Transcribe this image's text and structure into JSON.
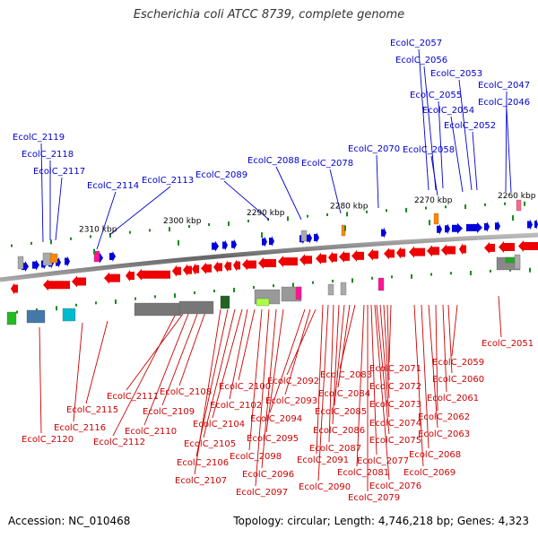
{
  "title": "Escherichia coli ATCC 8739, complete genome",
  "footer": {
    "accession": "Accession: NC_010468",
    "summary": "Topology: circular; Length: 4,746,218 bp; Genes: 4,323"
  },
  "colors": {
    "forward": "#0000dd",
    "reverse": "#ee0000",
    "backbone": "#888888"
  },
  "ticks": [
    "2310 kbp",
    "2300 kbp",
    "2290 kbp",
    "2280 kbp",
    "2270 kbp",
    "2260 kbp"
  ],
  "upper_labels": [
    "EcolC_2119",
    "EcolC_2118",
    "EcolC_2117",
    "EcolC_2114",
    "EcolC_2113",
    "EcolC_2089",
    "EcolC_2088",
    "EcolC_2078",
    "EcolC_2070",
    "EcolC_2058",
    "EcolC_2057",
    "EcolC_2056",
    "EcolC_2055",
    "EcolC_2054",
    "EcolC_2053",
    "EcolC_2052",
    "EcolC_2047",
    "EcolC_2046"
  ],
  "lower_labels": [
    "EcolC_2051",
    "EcolC_2059",
    "EcolC_2060",
    "EcolC_2061",
    "EcolC_2062",
    "EcolC_2063",
    "EcolC_2068",
    "EcolC_2069",
    "EcolC_2071",
    "EcolC_2072",
    "EcolC_2073",
    "EcolC_2074",
    "EcolC_2075",
    "EcolC_2076",
    "EcolC_2077",
    "EcolC_2079",
    "EcolC_2081",
    "EcolC_2083",
    "EcolC_2084",
    "EcolC_2085",
    "EcolC_2086",
    "EcolC_2087",
    "EcolC_2090",
    "EcolC_2091",
    "EcolC_2092",
    "EcolC_2093",
    "EcolC_2094",
    "EcolC_2095",
    "EcolC_2096",
    "EcolC_2097",
    "EcolC_2098",
    "EcolC_2100",
    "EcolC_2102",
    "EcolC_2104",
    "EcolC_2105",
    "EcolC_2106",
    "EcolC_2107",
    "EcolC_2108",
    "EcolC_2109",
    "EcolC_2110",
    "EcolC_2111",
    "EcolC_2112",
    "EcolC_2115",
    "EcolC_2116",
    "EcolC_2120"
  ]
}
